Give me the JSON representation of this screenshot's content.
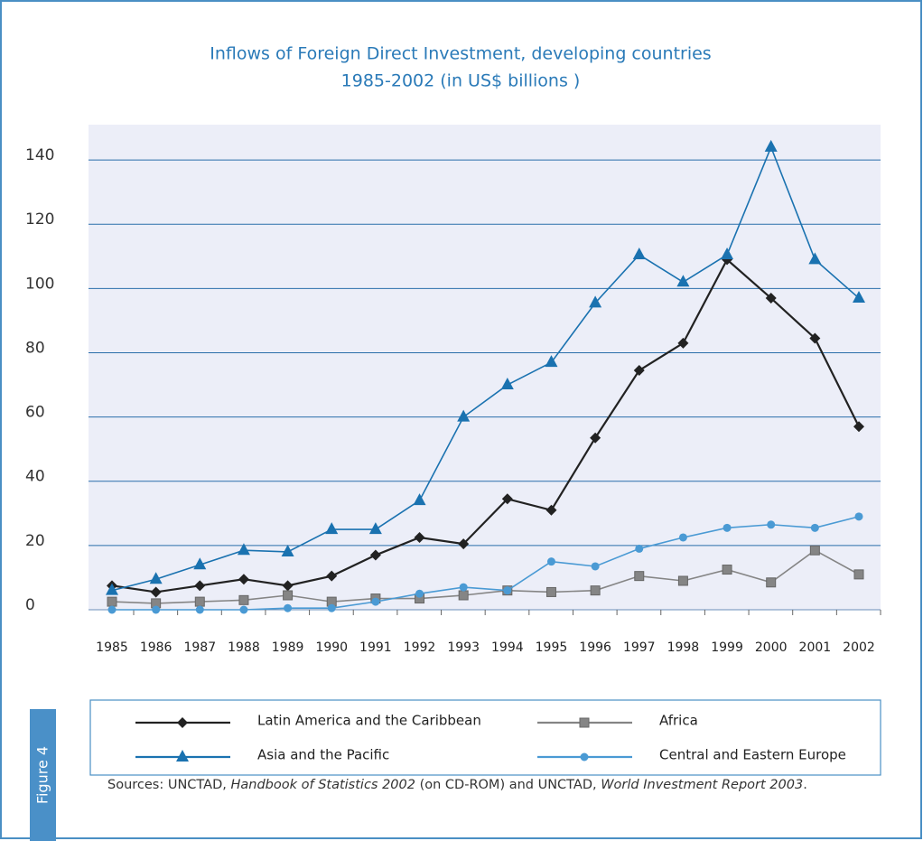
{
  "chart_data": {
    "type": "line",
    "title": [
      "Inflows of Foreign Direct Investment, developing countries",
      "1985-2002 (in US$ billions )"
    ],
    "categories": [
      "1985",
      "1986",
      "1987",
      "1988",
      "1989",
      "1990",
      "1991",
      "1992",
      "1993",
      "1994",
      "1995",
      "1996",
      "1997",
      "1998",
      "1999",
      "2000",
      "2001",
      "2002"
    ],
    "series": [
      {
        "name": "Latin America and the Caribbean",
        "color": "#222222",
        "marker": "diamond",
        "values": [
          7.5,
          5.5,
          7.5,
          9.5,
          7.5,
          10.5,
          17,
          22.5,
          20.5,
          34.5,
          31,
          53.5,
          74.5,
          83,
          109,
          97,
          84.5,
          57
        ]
      },
      {
        "name": "Africa",
        "color": "#858585",
        "marker": "square",
        "values": [
          2.5,
          2,
          2.5,
          3,
          4.5,
          2.5,
          3.5,
          3.5,
          4.5,
          6,
          5.5,
          6,
          10.5,
          9,
          12.5,
          8.5,
          18.5,
          11
        ]
      },
      {
        "name": "Asia and the Pacific",
        "color": "#1a72b0",
        "marker": "triangle",
        "values": [
          6,
          9.5,
          14,
          18.5,
          18,
          25,
          25,
          34,
          60,
          70,
          77,
          95.5,
          110.5,
          102,
          110.5,
          144,
          109,
          97
        ]
      },
      {
        "name": "Central and Eastern Europe",
        "color": "#4a9ad4",
        "marker": "circle",
        "values": [
          0,
          0,
          0,
          0,
          0.5,
          0.5,
          2.5,
          5,
          7,
          6,
          15,
          13.5,
          19,
          22.5,
          25.5,
          26.5,
          25.5,
          29
        ]
      }
    ],
    "ylim": [
      0,
      151
    ],
    "yticks": [
      0,
      20,
      40,
      60,
      80,
      100,
      120,
      140
    ],
    "grid": true,
    "figure_label": "Figure 4",
    "source": [
      "Sources: UNCTAD, ",
      "Handbook of Statistics 2002",
      " (on CD-ROM) and UNCTAD, ",
      "World Investment Report 2003",
      "."
    ]
  }
}
